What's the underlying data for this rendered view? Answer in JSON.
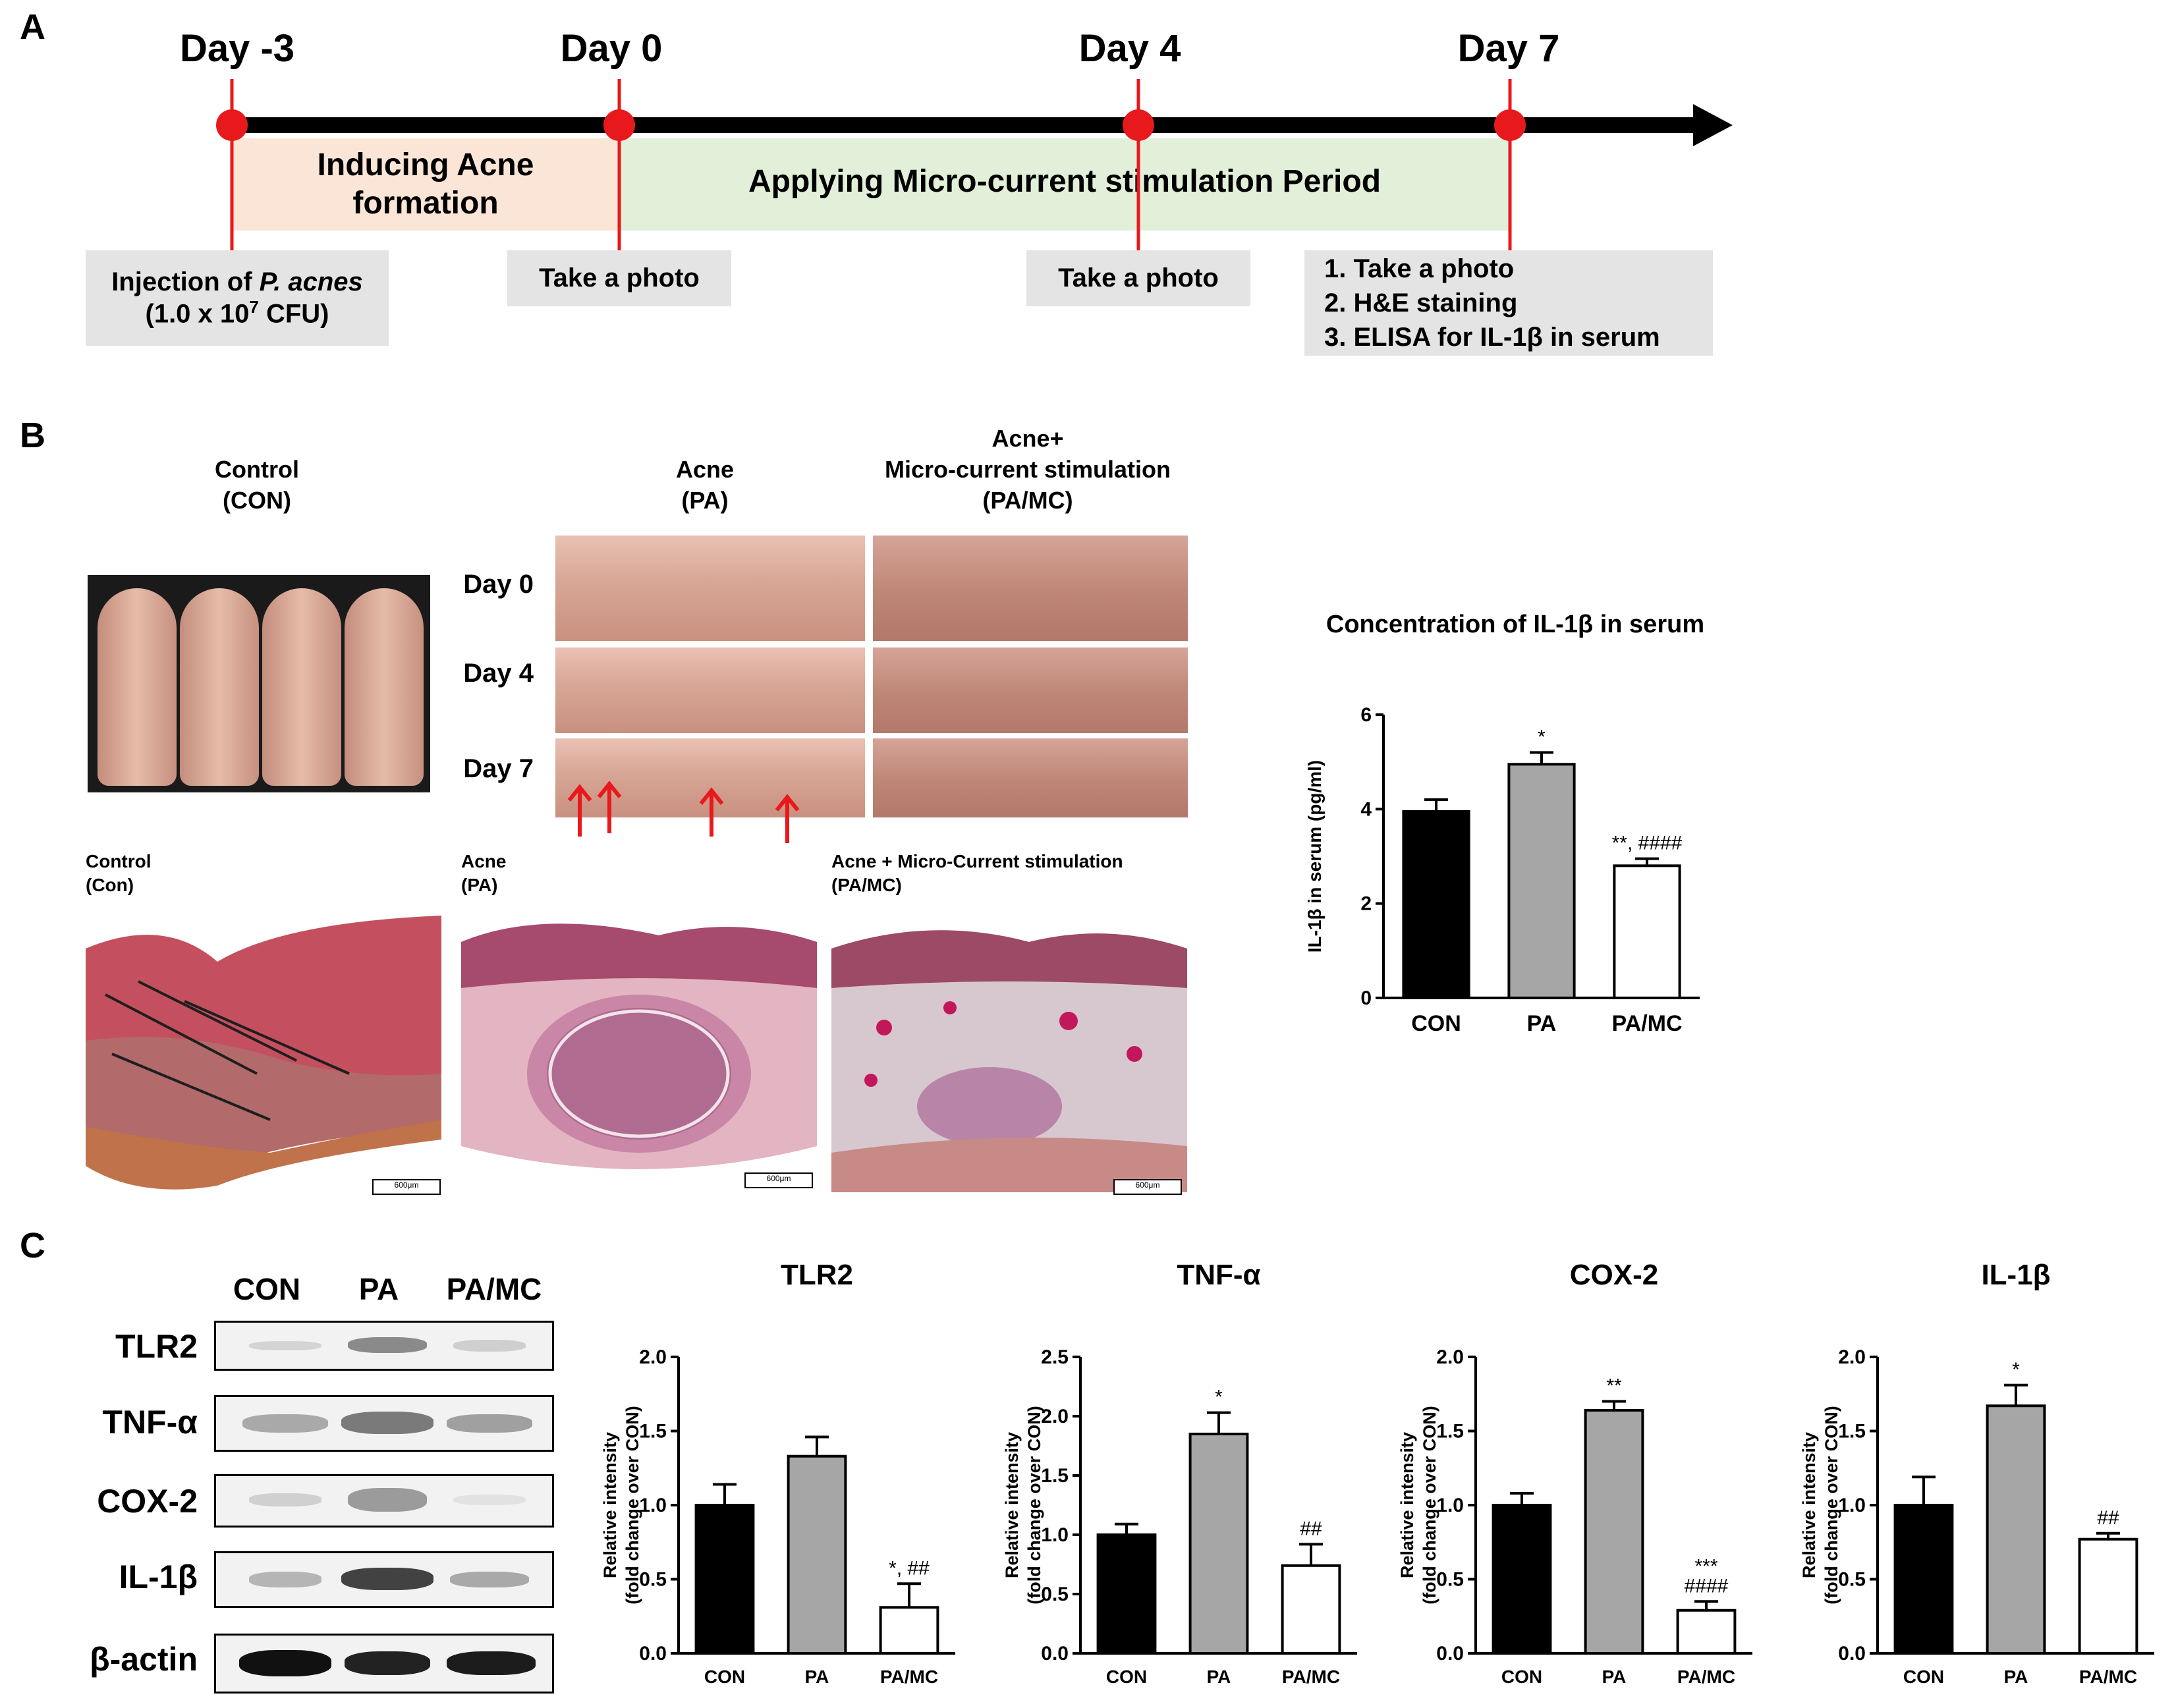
{
  "panels": {
    "a": "A",
    "b": "B",
    "c": "C"
  },
  "timeline": {
    "days": [
      "Day -3",
      "Day 0",
      "Day 4",
      "Day 7"
    ],
    "phase1": [
      "Inducing Acne",
      "formation"
    ],
    "phase2": "Applying Micro-current stimulation Period",
    "box1_line1_prefix": "Injection of ",
    "box1_line1_italic": "P. acnes",
    "box1_line2_prefix": "(1.0 x 10",
    "box1_line2_sup": "7",
    "box1_line2_suffix": " CFU)",
    "box2": "Take a photo",
    "box3": "Take a photo",
    "box4": [
      "1. Take a photo",
      "2. H&E staining",
      "3. ELISA for IL-1β in serum"
    ]
  },
  "photos": {
    "control_title": [
      "Control",
      "(CON)"
    ],
    "acne_title": [
      "Acne",
      "(PA)"
    ],
    "pamc_title": [
      "Acne+",
      "Micro-current stimulation",
      "(PA/MC)"
    ],
    "row_labels": [
      "Day 0",
      "Day 4",
      "Day 7"
    ]
  },
  "histology": {
    "labels": [
      [
        "Control",
        "(Con)"
      ],
      [
        "Acne",
        "(PA)"
      ],
      [
        "Acne + Micro-Current stimulation",
        "(PA/MC)"
      ]
    ],
    "scale_bar": "600μm"
  },
  "blot": {
    "lanes": [
      "CON",
      "PA",
      "PA/MC"
    ],
    "rows": [
      "TLR2",
      "TNF-α",
      "COX-2",
      "IL-1β",
      "β-actin"
    ]
  },
  "colors": {
    "red_marker": "#e8191c",
    "acne_phase": "#fbe5d6",
    "mc_phase": "#e2f0d9",
    "bar_con": "#000000",
    "bar_pa": "#a6a6a6",
    "bar_pamc": "#ffffff",
    "gray_box": "#e4e4e4"
  },
  "chart_data": [
    {
      "type": "bar",
      "title": "Concentration of IL-1β in serum",
      "ylabel": "IL-1β in serum (pg/ml)",
      "categories": [
        "CON",
        "PA",
        "PA/MC"
      ],
      "values": [
        3.95,
        4.95,
        2.8
      ],
      "errors": [
        0.25,
        0.25,
        0.15
      ],
      "annotations": [
        "",
        "*",
        "**, ####"
      ],
      "ylim": [
        0,
        6
      ],
      "yticks": [
        "0",
        "2",
        "4",
        "6"
      ]
    },
    {
      "type": "bar",
      "title": "TLR2",
      "ylabel": "Relative intensity (fold change over CON)",
      "categories": [
        "CON",
        "PA",
        "PA/MC"
      ],
      "values": [
        1.0,
        1.33,
        0.31
      ],
      "errors": [
        0.14,
        0.13,
        0.16
      ],
      "annotations": [
        "",
        "",
        "*, ##"
      ],
      "ylim": [
        0,
        2.0
      ],
      "yticks": [
        "0.0",
        "0.5",
        "1.0",
        "1.5",
        "2.0"
      ]
    },
    {
      "type": "bar",
      "title": "TNF-α",
      "ylabel": "Relative intensity (fold change over CON)",
      "categories": [
        "CON",
        "PA",
        "PA/MC"
      ],
      "values": [
        1.0,
        1.85,
        0.74
      ],
      "errors": [
        0.09,
        0.18,
        0.18
      ],
      "annotations": [
        "",
        "*",
        "##"
      ],
      "ylim": [
        0,
        2.5
      ],
      "yticks": [
        "0.0",
        "0.5",
        "1.0",
        "1.5",
        "2.0",
        "2.5"
      ]
    },
    {
      "type": "bar",
      "title": "COX-2",
      "ylabel": "Relative intensity (fold change over CON)",
      "categories": [
        "CON",
        "PA",
        "PA/MC"
      ],
      "values": [
        1.0,
        1.64,
        0.29
      ],
      "errors": [
        0.08,
        0.06,
        0.06
      ],
      "annotations": [
        "",
        "**",
        "***\n####"
      ],
      "ylim": [
        0,
        2.0
      ],
      "yticks": [
        "0.0",
        "0.5",
        "1.0",
        "1.5",
        "2.0"
      ]
    },
    {
      "type": "bar",
      "title": "IL-1β",
      "ylabel": "Relative intensity (fold change over CON)",
      "categories": [
        "CON",
        "PA",
        "PA/MC"
      ],
      "values": [
        1.0,
        1.67,
        0.77
      ],
      "errors": [
        0.19,
        0.14,
        0.04
      ],
      "annotations": [
        "",
        "*",
        "##"
      ],
      "ylim": [
        0,
        2.0
      ],
      "yticks": [
        "0.0",
        "0.5",
        "1.0",
        "1.5",
        "2.0"
      ]
    }
  ]
}
